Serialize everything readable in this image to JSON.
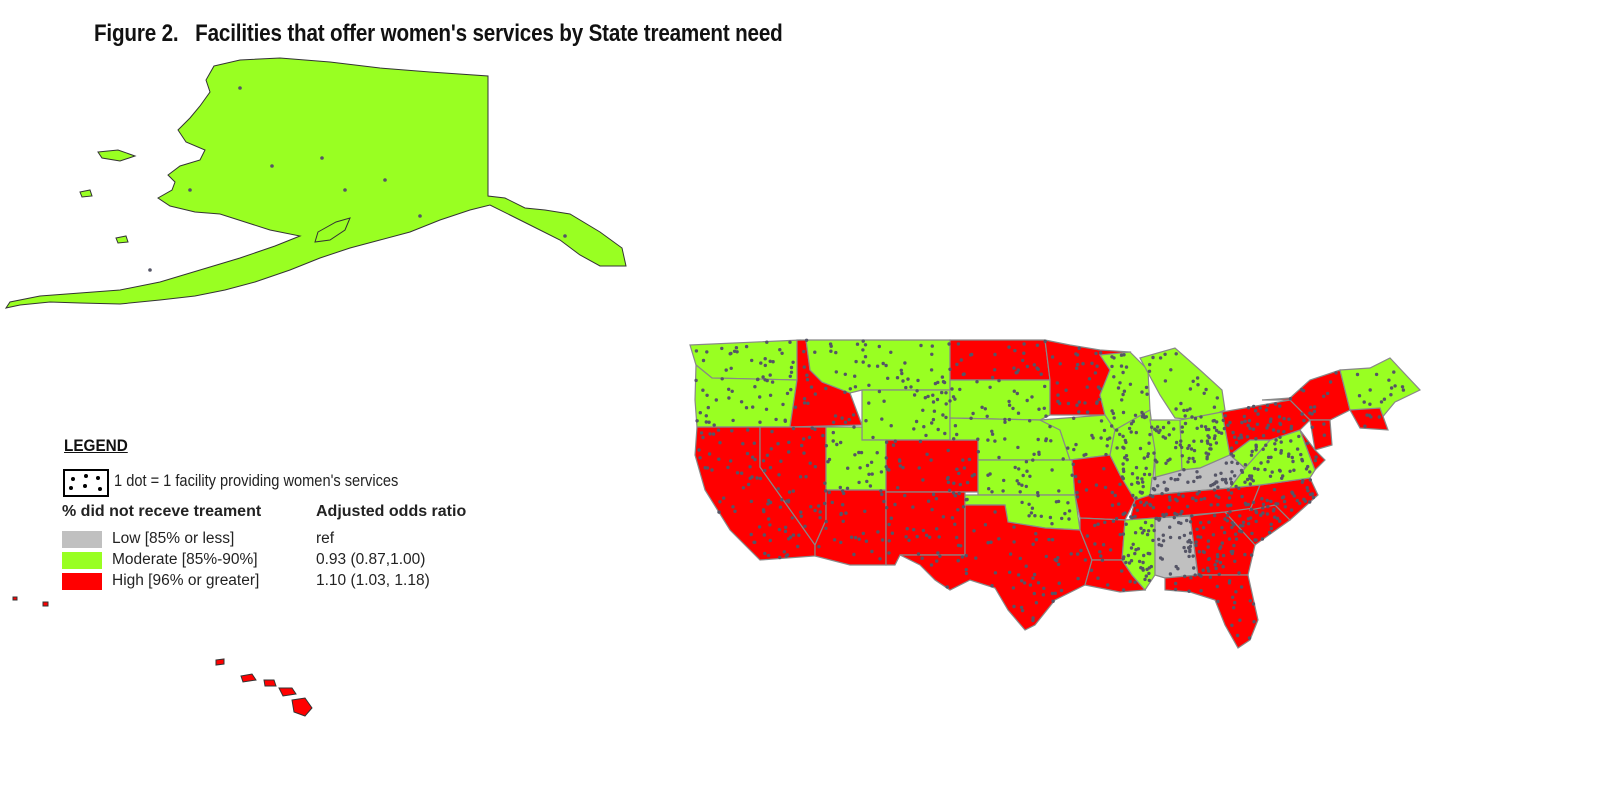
{
  "title": "Figure 2.   Facilities that offer women's services by State treament need",
  "legend": {
    "heading": "LEGEND",
    "dot_label": "1 dot = 1 facility providing women's services",
    "column_category": "% did not receve treament",
    "column_odds": "Adjusted odds ratio",
    "rows": [
      {
        "label": "Low [85% or less]",
        "odds": "ref",
        "color": "#c0c0c0"
      },
      {
        "label": "Moderate [85%-90%]",
        "odds": "0.93 (0.87,1.00)",
        "color": "#99ff22"
      },
      {
        "label": "High [96% or greater]",
        "odds": "1.10 (1.03, 1.18)",
        "color": "#ff0000"
      }
    ]
  },
  "map_colors": {
    "low": "#c0c0c0",
    "moderate": "#99ff22",
    "high": "#ff0000",
    "dots": "#555566",
    "state_borders": "#888888"
  },
  "regions": {
    "alaska": "moderate",
    "hawaii": "high"
  }
}
